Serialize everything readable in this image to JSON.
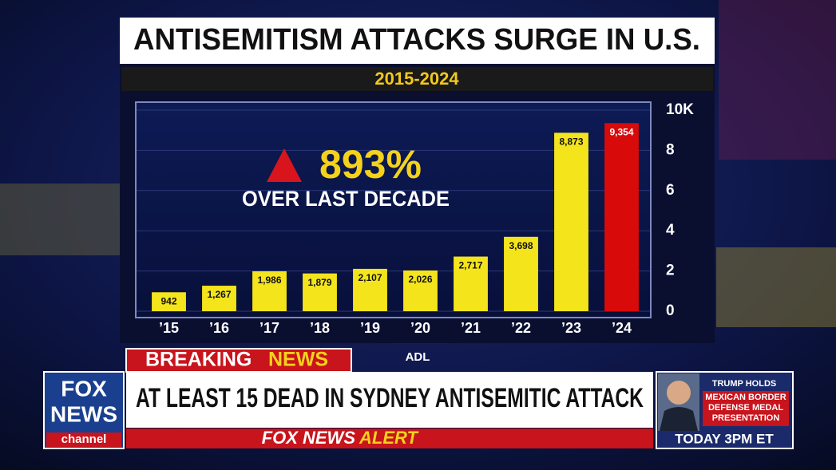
{
  "chart_data": {
    "type": "bar",
    "title": "ANTISEMITISM ATTACKS SURGE IN U.S.",
    "subtitle": "2015-2024",
    "categories": [
      "’15",
      "’16",
      "’17",
      "’18",
      "’19",
      "’20",
      "’21",
      "’22",
      "’23",
      "’24"
    ],
    "values": [
      0.942,
      1.267,
      1.986,
      1.879,
      2.107,
      2.026,
      2.717,
      3.698,
      8.873,
      9.354
    ],
    "value_labels": [
      "942",
      "1,267",
      "1,986",
      "1,879",
      "2,107",
      "2,026",
      "2,717",
      "3,698",
      "8,873",
      "9,354"
    ],
    "colors": [
      "#f4e41c",
      "#f4e41c",
      "#f4e41c",
      "#f4e41c",
      "#f4e41c",
      "#f4e41c",
      "#f4e41c",
      "#f4e41c",
      "#f4e41c",
      "#d80a0a"
    ],
    "ylim": [
      0,
      10
    ],
    "yticks": [
      0,
      2,
      4,
      6,
      8,
      {
        "value": 10,
        "label": "10K"
      }
    ],
    "grid": true,
    "annotation": {
      "value": "893%",
      "text": "OVER LAST DECADE"
    },
    "source": "ADL"
  },
  "banner": {
    "tag_1": "BREAKING",
    "tag_2": "NEWS",
    "headline": "AT LEAST 15 DEAD IN SYDNEY ANTISEMITIC ATTACK",
    "alert_1": "FOX NEWS",
    "alert_2": "ALERT"
  },
  "logo": {
    "line_1": "FOX",
    "line_2": "NEWS",
    "line_3": "channel"
  },
  "promo": {
    "title": "TRUMP HOLDS",
    "text_1": "MEXICAN BORDER",
    "text_2": "DEFENSE MEDAL",
    "text_3": "PRESENTATION",
    "time": "TODAY 3PM ET"
  }
}
